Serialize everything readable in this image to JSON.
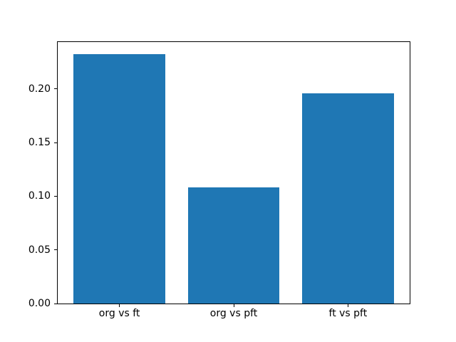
{
  "figure": {
    "background_color": "#ffffff",
    "spine_color": "#000000",
    "tick_color": "#000000"
  },
  "chart_data": {
    "type": "bar",
    "categories": [
      "org vs ft",
      "org vs pft",
      "ft vs pft"
    ],
    "values": [
      0.232,
      0.108,
      0.196
    ],
    "title": "",
    "xlabel": "",
    "ylabel": "",
    "ylim": [
      0,
      0.2436
    ],
    "yticks": [
      0.0,
      0.05,
      0.1,
      0.15,
      0.2
    ],
    "ytick_labels": [
      "0.00",
      "0.05",
      "0.10",
      "0.15",
      "0.20"
    ],
    "bar_color": "#1f77b4",
    "bar_width_fraction": 0.8,
    "grid": false,
    "legend": null
  }
}
